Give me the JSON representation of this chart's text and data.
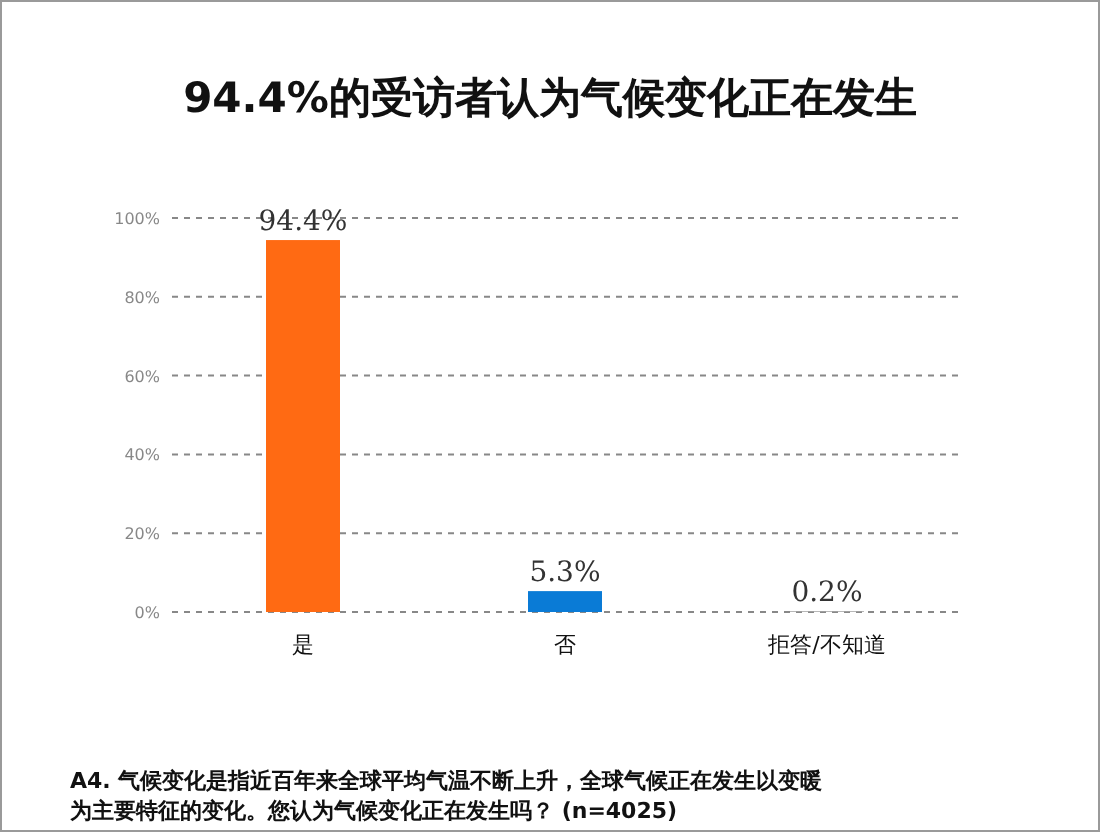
{
  "chart_data": {
    "type": "bar",
    "title": "94.4%的受访者认为气候变化正在发生",
    "categories": [
      "是",
      "否",
      "拒答/不知道"
    ],
    "values": [
      94.4,
      5.3,
      0.2
    ],
    "colors": [
      "#ff6a13",
      "#0a7bd6",
      "#a5a5a5"
    ],
    "value_labels": [
      "94.4%",
      "5.3%",
      "0.2%"
    ],
    "ylim": [
      0,
      100
    ],
    "yticks": [
      {
        "value": 0,
        "label": "0%"
      },
      {
        "value": 20,
        "label": "20%"
      },
      {
        "value": 40,
        "label": "40%"
      },
      {
        "value": 60,
        "label": "60%"
      },
      {
        "value": 80,
        "label": "80%"
      },
      {
        "value": 100,
        "label": "100%"
      }
    ],
    "grid": "y",
    "annotations": [
      "A4. 气候变化是指近百年来全球平均气温不断上升，全球气候正在发生以变暖为主要特征的变化。您认为气候变化正在发生吗？ (n=4025)"
    ]
  }
}
